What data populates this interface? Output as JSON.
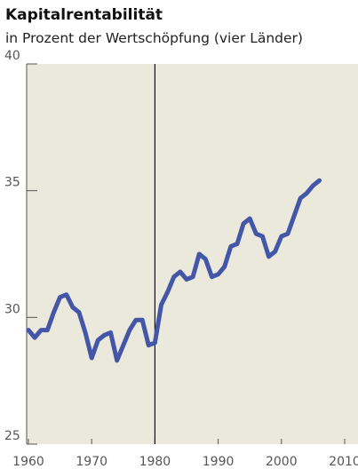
{
  "chart_data": {
    "type": "line",
    "title": "Kapitalrentabilität",
    "subtitle": "in Prozent der Wertschöpfung (vier Länder)",
    "x": [
      1960,
      1961,
      1962,
      1963,
      1964,
      1965,
      1966,
      1967,
      1968,
      1969,
      1970,
      1971,
      1972,
      1973,
      1974,
      1975,
      1976,
      1977,
      1978,
      1979,
      1980,
      1981,
      1982,
      1983,
      1984,
      1985,
      1986,
      1987,
      1988,
      1989,
      1990,
      1991,
      1992,
      1993,
      1994,
      1995,
      1996,
      1997,
      1998,
      1999,
      2000,
      2001,
      2002,
      2003,
      2004,
      2005,
      2006
    ],
    "series": [
      {
        "color": "#4456a8",
        "values": [
          29.5,
          29.2,
          29.5,
          29.5,
          30.2,
          30.8,
          30.9,
          30.4,
          30.2,
          29.4,
          28.4,
          29.1,
          29.3,
          29.4,
          28.3,
          28.9,
          29.5,
          29.9,
          29.9,
          28.9,
          29.0,
          30.5,
          31.0,
          31.6,
          31.8,
          31.5,
          31.6,
          32.5,
          32.3,
          31.6,
          31.7,
          32.0,
          32.8,
          32.9,
          33.7,
          33.9,
          33.3,
          33.2,
          32.4,
          32.6,
          33.2,
          33.3,
          34.0,
          34.7,
          34.9,
          35.2,
          35.4
        ]
      }
    ],
    "xlim": [
      1960,
      2010
    ],
    "xticks": [
      1960,
      1970,
      1980,
      1990,
      2000,
      2010
    ],
    "ylim": [
      25,
      40
    ],
    "yticks": [
      25,
      30,
      35,
      40
    ],
    "vline": 1980
  }
}
